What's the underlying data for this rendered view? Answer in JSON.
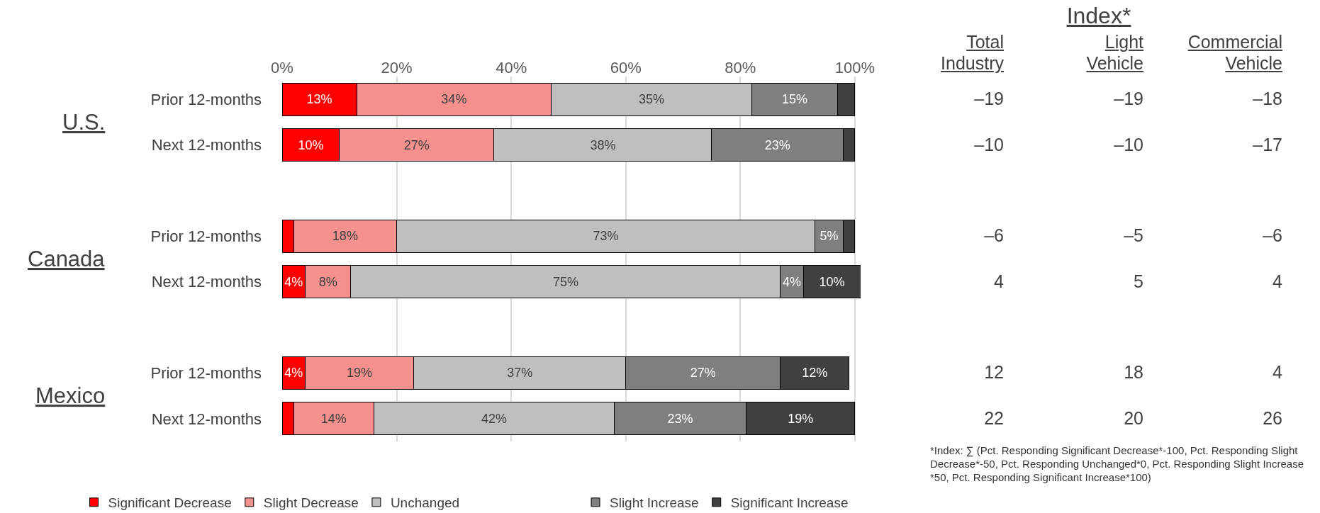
{
  "chart_data": [
    {
      "type": "bar",
      "orientation": "horizontal",
      "stacked": true,
      "categories": [
        "Prior 12-months",
        "Next 12-months",
        null,
        "Prior 12-months",
        "Next 12-months",
        null,
        "Prior 12-months",
        "Next 12-months"
      ],
      "series": [
        {
          "name": "Significant Decrease",
          "color": "#ff0000",
          "values": [
            13,
            10,
            null,
            2,
            4,
            null,
            4,
            2
          ],
          "value_labels": [
            "13%",
            "10%",
            null,
            null,
            "4%",
            null,
            "4%",
            null
          ]
        },
        {
          "name": "Slight Decrease",
          "color": "#f4918f",
          "values": [
            34,
            27,
            null,
            18,
            8,
            null,
            19,
            14
          ],
          "value_labels": [
            "34%",
            "27%",
            null,
            "18%",
            "8%",
            null,
            "19%",
            "14%"
          ]
        },
        {
          "name": "Unchanged",
          "color": "#bfbfbf",
          "values": [
            35,
            38,
            null,
            73,
            75,
            null,
            37,
            42
          ],
          "value_labels": [
            "35%",
            "38%",
            null,
            "73%",
            "75%",
            null,
            "37%",
            "42%"
          ]
        },
        {
          "name": "Slight Increase",
          "color": "#7f7f7f",
          "values": [
            15,
            23,
            null,
            5,
            4,
            null,
            27,
            23
          ],
          "value_labels": [
            "15%",
            "23%",
            null,
            "5%",
            "4%",
            null,
            "27%",
            "23%"
          ]
        },
        {
          "name": "Significant Increase",
          "color": "#404040",
          "values": [
            3,
            2,
            null,
            2,
            10,
            null,
            12,
            19
          ],
          "value_labels": [
            null,
            null,
            null,
            null,
            "10%",
            null,
            "12%",
            "19%"
          ]
        }
      ],
      "xlim": [
        0,
        101
      ],
      "xticks": [
        {
          "value": 0,
          "label": "0%"
        },
        {
          "value": 20,
          "label": "20%"
        },
        {
          "value": 40,
          "label": "40%"
        },
        {
          "value": 60,
          "label": "60%"
        },
        {
          "value": 80,
          "label": "80%"
        },
        {
          "value": 100,
          "label": "100%"
        }
      ],
      "grid": "x",
      "legend": "bottom",
      "annotations": [
        "U.S.",
        "Canada",
        "Mexico"
      ]
    },
    {
      "type": "other",
      "title": "Index*",
      "categories": [
        "Total Industry",
        "Light Vehicle",
        "Commercial Vehicle"
      ],
      "annotations": [
        "–19",
        "–19",
        "–18",
        "–10",
        "–10",
        "–17",
        "–6",
        "–5",
        "–6",
        "4",
        "5",
        "4",
        "12",
        "18",
        "4",
        "22",
        "20",
        "26",
        "*Index: ∑ (Pct. Responding Significant Decrease*-100, Pct. Responding Slight Decrease*-50, Pct. Responding Unchanged*0, Pct. Responding Slight Increase *50, Pct. Responding Significant Increase*100)"
      ]
    }
  ]
}
